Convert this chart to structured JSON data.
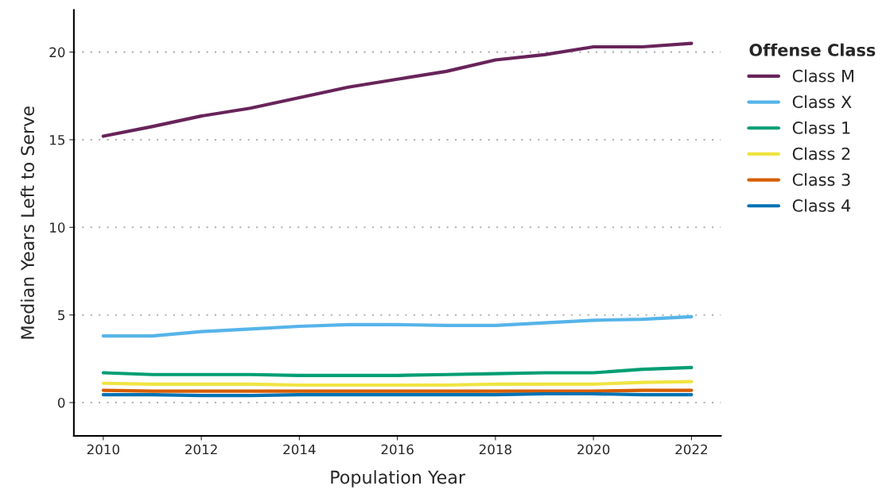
{
  "chart_data": {
    "type": "line",
    "xlabel": "Population Year",
    "ylabel": "Median Years Left to Serve",
    "legend_title": "Offense Class",
    "legend": "right",
    "grid": "y",
    "x": [
      2010,
      2011,
      2012,
      2013,
      2014,
      2015,
      2016,
      2017,
      2018,
      2019,
      2020,
      2021,
      2022
    ],
    "xlim": [
      2009.4,
      2022.6
    ],
    "xticks": [
      2010,
      2012,
      2014,
      2016,
      2018,
      2020,
      2022
    ],
    "ylim": [
      -1.9,
      22.4
    ],
    "yticks": [
      0,
      5,
      10,
      15,
      20
    ],
    "series": [
      {
        "name": "Class M",
        "color": "#68245a",
        "values": [
          15.2,
          15.75,
          16.35,
          16.8,
          17.4,
          18.0,
          18.45,
          18.9,
          19.55,
          19.85,
          20.3,
          20.3,
          20.5
        ]
      },
      {
        "name": "Class X",
        "color": "#56b4e9",
        "values": [
          3.8,
          3.8,
          4.05,
          4.2,
          4.35,
          4.45,
          4.45,
          4.4,
          4.4,
          4.55,
          4.7,
          4.75,
          4.9
        ]
      },
      {
        "name": "Class 1",
        "color": "#009e73",
        "values": [
          1.7,
          1.6,
          1.6,
          1.6,
          1.55,
          1.55,
          1.55,
          1.6,
          1.65,
          1.7,
          1.7,
          1.9,
          2.0
        ]
      },
      {
        "name": "Class 2",
        "color": "#f0e442",
        "values": [
          1.1,
          1.05,
          1.05,
          1.05,
          1.0,
          1.0,
          1.0,
          1.0,
          1.05,
          1.05,
          1.05,
          1.15,
          1.2
        ]
      },
      {
        "name": "Class 3",
        "color": "#d55e00",
        "values": [
          0.7,
          0.65,
          0.65,
          0.65,
          0.65,
          0.65,
          0.65,
          0.65,
          0.65,
          0.65,
          0.65,
          0.7,
          0.7
        ]
      },
      {
        "name": "Class 4",
        "color": "#0072b2",
        "values": [
          0.45,
          0.45,
          0.4,
          0.4,
          0.45,
          0.45,
          0.45,
          0.45,
          0.45,
          0.5,
          0.5,
          0.45,
          0.45
        ]
      }
    ]
  }
}
